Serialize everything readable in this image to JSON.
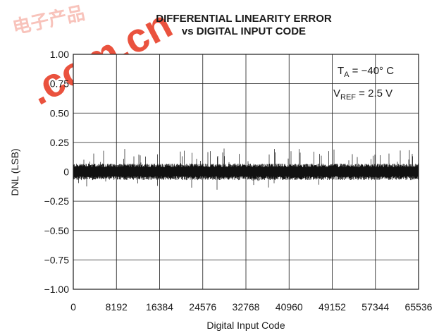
{
  "chart_data": {
    "type": "line",
    "title_line1": "DIFFERENTIAL LINEARITY ERROR",
    "title_line2": "vs DIGITAL INPUT CODE",
    "xlabel": "Digital Input Code",
    "ylabel": "DNL (LSB)",
    "xlim": [
      0,
      65536
    ],
    "ylim": [
      -1.0,
      1.0
    ],
    "x_ticks": [
      0,
      8192,
      16384,
      24576,
      32768,
      40960,
      49152,
      57344,
      65536
    ],
    "x_tick_labels": [
      "0",
      "8192",
      "16384",
      "24576",
      "32768",
      "40960",
      "49152",
      "57344",
      "65536"
    ],
    "y_ticks": [
      1.0,
      0.75,
      0.5,
      0.25,
      0,
      -0.25,
      -0.5,
      -0.75,
      -1.0
    ],
    "y_tick_labels": [
      "1.00",
      "0.75",
      "0.50",
      "0.25",
      "0",
      "−0.25",
      "−0.50",
      "−0.75",
      "−1.00"
    ],
    "grid": true,
    "annotation": {
      "line1_main": "T",
      "line1_sub": "A",
      "line1_rest": " = −40° C",
      "line2_main": "V",
      "line2_sub": "REF",
      "line2_rest": " = 2.5 V"
    },
    "series": [
      {
        "band_upper": 0.07,
        "band_lower": -0.07,
        "spike_max": 0.2,
        "spike_min": -0.16,
        "color": "#111111"
      }
    ]
  },
  "watermark": {
    "text": ".com.cn",
    "color": "#e8402a"
  }
}
